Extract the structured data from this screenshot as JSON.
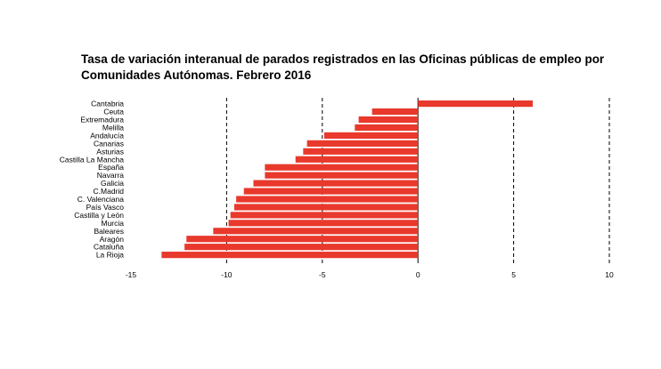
{
  "chart_data": {
    "type": "bar",
    "orientation": "horizontal",
    "title": "Tasa de variación interanual de parados registrados en las Oficinas públicas de empleo por Comunidades Autónomas.  Febrero 2016",
    "title_lines": [
      "Tasa de variación interanual de parados registrados en las Oficinas públicas de empleo por",
      "Comunidades Autónomas.  Febrero 2016"
    ],
    "xlabel": "",
    "ylabel": "",
    "xlim": [
      -15,
      10
    ],
    "x_ticks": [
      -15,
      -10,
      -5,
      0,
      5,
      10
    ],
    "gridlines_dashed_at": [
      -10,
      -5,
      5,
      10
    ],
    "grid": true,
    "legend": "none",
    "bar_color": "#e8392c",
    "categories": [
      "Cantabria",
      "Ceuta",
      "Extremadura",
      "Melilla",
      "Andalucía",
      "Canarias",
      "Asturias",
      "Castilla La Mancha",
      "España",
      "Navarra",
      "Galicia",
      "C.Madrid",
      "C. Valenciana",
      "País Vasco",
      "Castilla y León",
      "Murcia",
      "Baleares",
      "Aragón",
      "Cataluña",
      "La Rioja"
    ],
    "values": [
      6.0,
      -2.4,
      -3.1,
      -3.3,
      -4.9,
      -5.8,
      -6.0,
      -6.4,
      -8.0,
      -8.0,
      -8.6,
      -9.1,
      -9.5,
      -9.6,
      -9.8,
      -9.9,
      -10.7,
      -12.1,
      -12.2,
      -13.4
    ]
  }
}
